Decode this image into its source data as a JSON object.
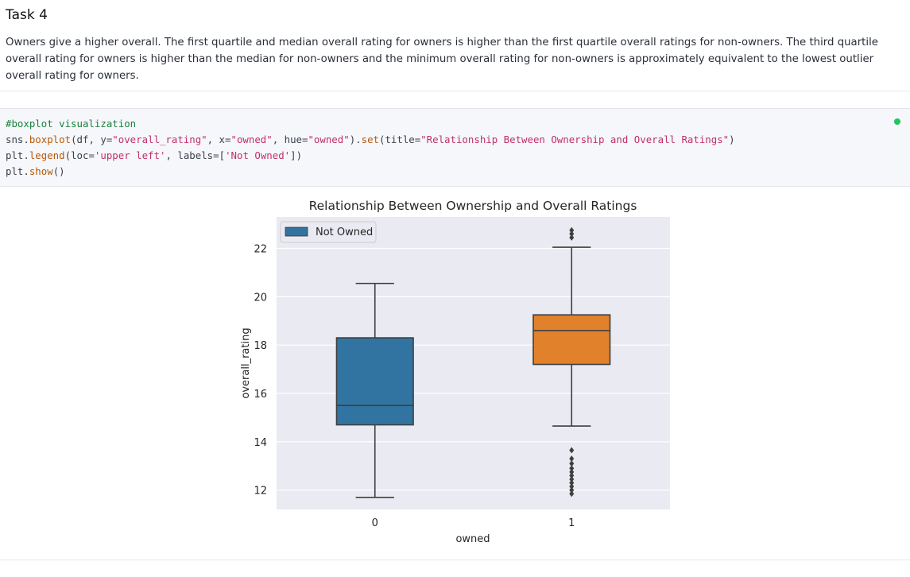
{
  "markdown": {
    "title": "Task 4",
    "body": "Owners give a higher overall. The first quartile and median overall rating for owners is higher than the first quartile overall ratings for non-owners. The third quartile overall rating for owners is higher than the median for non-owners and the minimum overall rating for non-owners is approximately equivalent to the lowest outlier overall rating for owners."
  },
  "code_cell": {
    "comment": "#boxplot visualization",
    "status_color": "#22c55e"
  },
  "chart_data": {
    "type": "boxplot",
    "title": "Relationship Between Ownership and Overall Ratings",
    "xlabel": "owned",
    "ylabel": "overall_rating",
    "categories": [
      "0",
      "1"
    ],
    "ylim": [
      11.2,
      23.3
    ],
    "yticks": [
      12,
      14,
      16,
      18,
      20,
      22
    ],
    "grid": true,
    "legend": {
      "position": "upper-left",
      "entries": [
        "Not Owned"
      ]
    },
    "series": [
      {
        "category": "0",
        "color": "#3274a1",
        "whisker_low": 11.7,
        "q1": 14.7,
        "median": 15.5,
        "q3": 18.3,
        "whisker_high": 20.55,
        "outliers": []
      },
      {
        "category": "1",
        "color": "#e1812c",
        "whisker_low": 14.65,
        "q1": 17.2,
        "median": 18.6,
        "q3": 19.25,
        "whisker_high": 22.05,
        "outliers": [
          22.45,
          22.6,
          22.75,
          13.65,
          13.3,
          13.1,
          12.9,
          12.75,
          12.6,
          12.45,
          12.3,
          12.15,
          12.0,
          11.85
        ]
      }
    ]
  }
}
